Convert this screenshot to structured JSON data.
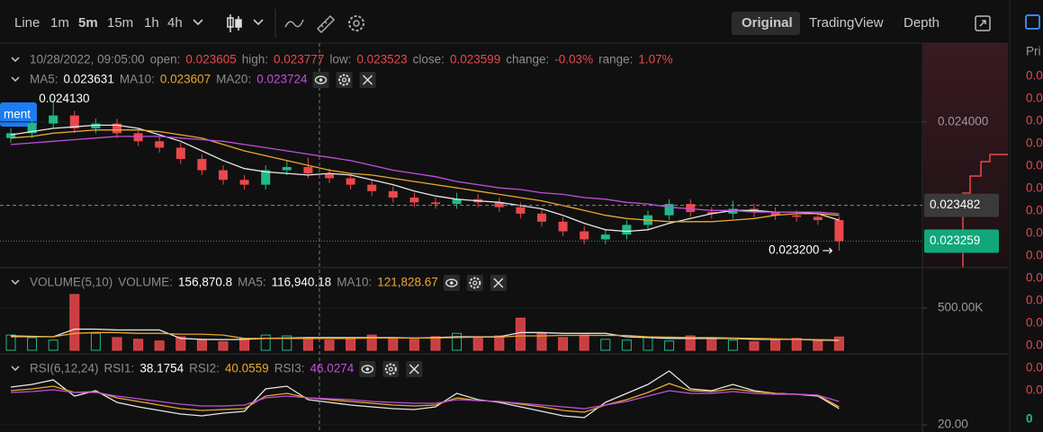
{
  "toolbar": {
    "intervals": [
      "Line",
      "1m",
      "5m",
      "15m",
      "1h",
      "4h"
    ],
    "views": [
      "Original",
      "TradingView",
      "Depth"
    ]
  },
  "tab_label": "ment",
  "info": {
    "time": "10/28/2022, 09:05:00",
    "fields": [
      {
        "label": "open:",
        "value": "0.023605"
      },
      {
        "label": "high:",
        "value": "0.023777"
      },
      {
        "label": "low:",
        "value": "0.023523"
      },
      {
        "label": "close:",
        "value": "0.023599"
      },
      {
        "label": "change:",
        "value": "-0.03%"
      },
      {
        "label": "range:",
        "value": "1.07%"
      }
    ]
  },
  "sidebar": {
    "header": "Pri",
    "prices": [
      "0.0",
      "0.0",
      "0.0",
      "0.0",
      "0.0",
      "0.0",
      "0.0",
      "0.0",
      "0.0",
      "0.0",
      "0.0",
      "0.0",
      "0.0",
      "0.0",
      "0.0"
    ],
    "last": "0"
  },
  "chart_data": [
    {
      "type": "candlestick",
      "open": [
        0.0239,
        0.02393,
        0.02399,
        0.02404,
        0.02396,
        0.02399,
        0.02393,
        0.02388,
        0.02384,
        0.02377,
        0.0237,
        0.02364,
        0.02361,
        0.0237,
        0.02372,
        0.02368,
        0.02365,
        0.02361,
        0.02357,
        0.02353,
        0.0235,
        0.02349,
        0.02352,
        0.0235,
        0.02347,
        0.02343,
        0.02338,
        0.02332,
        0.02327,
        0.0233,
        0.02336,
        0.02342,
        0.02349,
        0.02344,
        0.02343,
        0.02346,
        0.02344,
        0.02342,
        0.02341,
        0.02339
      ],
      "high": [
        0.02396,
        0.02402,
        0.02413,
        0.02407,
        0.02402,
        0.02402,
        0.02396,
        0.02391,
        0.02387,
        0.0238,
        0.02373,
        0.02367,
        0.02373,
        0.02376,
        0.023777,
        0.02371,
        0.02368,
        0.02364,
        0.0236,
        0.02356,
        0.02353,
        0.02356,
        0.02355,
        0.02353,
        0.0235,
        0.02346,
        0.02341,
        0.02335,
        0.02333,
        0.02339,
        0.02345,
        0.02352,
        0.02352,
        0.02347,
        0.02351,
        0.02349,
        0.02347,
        0.02345,
        0.02344,
        0.02341
      ],
      "low": [
        0.02387,
        0.0239,
        0.02396,
        0.02393,
        0.02393,
        0.0239,
        0.02385,
        0.02381,
        0.02374,
        0.02367,
        0.02361,
        0.02358,
        0.02358,
        0.02367,
        0.02365,
        0.02362,
        0.02358,
        0.02354,
        0.0235,
        0.02347,
        0.02346,
        0.02346,
        0.02347,
        0.02344,
        0.0234,
        0.02335,
        0.02329,
        0.02324,
        0.02324,
        0.02327,
        0.02333,
        0.02339,
        0.02341,
        0.0234,
        0.0234,
        0.02341,
        0.02339,
        0.02338,
        0.02336,
        0.0232
      ],
      "close": [
        0.02393,
        0.02399,
        0.02404,
        0.02396,
        0.02399,
        0.02393,
        0.02388,
        0.02384,
        0.02377,
        0.0237,
        0.02364,
        0.02361,
        0.0237,
        0.02372,
        0.02368,
        0.02365,
        0.02361,
        0.02357,
        0.02353,
        0.0235,
        0.02349,
        0.02352,
        0.0235,
        0.02347,
        0.02343,
        0.02338,
        0.02332,
        0.02327,
        0.0233,
        0.02336,
        0.02342,
        0.02349,
        0.02344,
        0.02343,
        0.02346,
        0.02344,
        0.02342,
        0.02341,
        0.02339,
        0.023259
      ],
      "up_color": "#22b98a",
      "down_color": "#e9484c",
      "ylim": [
        0.0231,
        0.02449
      ],
      "yticks": [
        {
          "value": 0.024,
          "label": "0.024000"
        }
      ],
      "grid": true,
      "crosshair": 0.023482,
      "last": 0.023259,
      "high_label": "0.024130",
      "low_label": "0.023200",
      "series": [
        {
          "name": "MA5:",
          "legend_value": "0.023631",
          "color": "#e6e6e6",
          "values": [
            0.02392,
            0.02394,
            0.02396,
            0.02397,
            0.02398,
            0.02398,
            0.02396,
            0.02392,
            0.02388,
            0.02382,
            0.02376,
            0.02371,
            0.02369,
            0.02368,
            0.02367,
            0.02368,
            0.02367,
            0.02364,
            0.02361,
            0.02357,
            0.02354,
            0.02352,
            0.02351,
            0.0235,
            0.02348,
            0.02346,
            0.02342,
            0.02337,
            0.02333,
            0.02332,
            0.02333,
            0.02337,
            0.0234,
            0.02343,
            0.02345,
            0.02345,
            0.02344,
            0.02344,
            0.02343,
            0.02339
          ]
        },
        {
          "name": "MA10:",
          "legend_value": "0.023607",
          "color": "#e9a82b",
          "values": [
            0.0239,
            0.02391,
            0.02393,
            0.02394,
            0.02395,
            0.02395,
            0.02395,
            0.02394,
            0.02392,
            0.0239,
            0.02386,
            0.02382,
            0.02379,
            0.02376,
            0.02373,
            0.0237,
            0.02368,
            0.02367,
            0.02365,
            0.02363,
            0.02361,
            0.02359,
            0.02357,
            0.02355,
            0.02353,
            0.02351,
            0.02348,
            0.02345,
            0.02342,
            0.0234,
            0.02339,
            0.02338,
            0.02338,
            0.02338,
            0.02339,
            0.0234,
            0.02342,
            0.02343,
            0.02343,
            0.02342
          ]
        },
        {
          "name": "MA20:",
          "legend_value": "0.023724",
          "color": "#c04fdc",
          "values": [
            0.02386,
            0.02387,
            0.02388,
            0.02389,
            0.0239,
            0.02391,
            0.02391,
            0.02391,
            0.0239,
            0.02389,
            0.02388,
            0.02386,
            0.02384,
            0.02382,
            0.0238,
            0.02378,
            0.02376,
            0.02373,
            0.0237,
            0.02368,
            0.02366,
            0.02363,
            0.02361,
            0.02359,
            0.02358,
            0.02356,
            0.02355,
            0.02353,
            0.02352,
            0.0235,
            0.02349,
            0.02347,
            0.02346,
            0.02345,
            0.02345,
            0.02344,
            0.02344,
            0.02344,
            0.02344,
            0.02343
          ]
        }
      ]
    },
    {
      "type": "volume",
      "title": "VOLUME(5,10)",
      "volume_label": "VOLUME:",
      "volume_value": "156,870.8",
      "values": [
        180000,
        150000,
        120000,
        660000,
        200000,
        150000,
        130000,
        110000,
        160000,
        120000,
        100000,
        140000,
        180000,
        170000,
        150000,
        120000,
        140000,
        180000,
        150000,
        130000,
        160000,
        200000,
        150000,
        170000,
        380000,
        200000,
        150000,
        180000,
        130000,
        120000,
        160000,
        110000,
        170000,
        150000,
        120000,
        100000,
        130000,
        140000,
        120000,
        156870.8
      ],
      "ylim": [
        0,
        957000
      ],
      "yticks": [
        {
          "value": 500000,
          "label": "500.00K"
        }
      ],
      "grid": true,
      "series": [
        {
          "name": "MA5:",
          "legend_value": "116,940.18",
          "color": "#e6e6e6",
          "values": [
            170000,
            165000,
            160000,
            250000,
            250000,
            240000,
            240000,
            240000,
            140000,
            130000,
            125000,
            130000,
            140000,
            145000,
            150000,
            150000,
            150000,
            150000,
            150000,
            145000,
            150000,
            160000,
            160000,
            160000,
            210000,
            210000,
            200000,
            200000,
            200000,
            160000,
            150000,
            140000,
            140000,
            140000,
            140000,
            130000,
            130000,
            130000,
            120000,
            116940.18
          ]
        },
        {
          "name": "MA10:",
          "legend_value": "121,828.67",
          "color": "#e9a82b",
          "values": [
            160000,
            160000,
            160000,
            200000,
            210000,
            210000,
            200000,
            200000,
            190000,
            190000,
            180000,
            140000,
            140000,
            140000,
            140000,
            140000,
            140000,
            145000,
            145000,
            145000,
            145000,
            150000,
            155000,
            155000,
            170000,
            170000,
            175000,
            175000,
            175000,
            175000,
            160000,
            155000,
            150000,
            150000,
            145000,
            140000,
            135000,
            130000,
            125000,
            121828.67
          ]
        }
      ]
    },
    {
      "type": "line",
      "title": "RSI(6,12,24)",
      "ylim": [
        12,
        97
      ],
      "yticks": [
        {
          "value": 20,
          "label": "20.00"
        }
      ],
      "grid": true,
      "series": [
        {
          "name": "RSI1:",
          "legend_value": "38.1754",
          "color": "#e6e6e6",
          "values": [
            62,
            65,
            70,
            52,
            58,
            45,
            40,
            36,
            32,
            30,
            33,
            35,
            60,
            63,
            48,
            45,
            42,
            40,
            38,
            37,
            40,
            55,
            48,
            45,
            40,
            35,
            30,
            28,
            45,
            55,
            65,
            80,
            60,
            58,
            65,
            58,
            55,
            54,
            52,
            38
          ]
        },
        {
          "name": "RSI2:",
          "legend_value": "40.0559",
          "color": "#e9a82b",
          "values": [
            58,
            60,
            63,
            56,
            57,
            50,
            46,
            42,
            38,
            36,
            37,
            38,
            52,
            55,
            50,
            48,
            46,
            44,
            42,
            41,
            42,
            50,
            47,
            46,
            43,
            40,
            36,
            34,
            42,
            48,
            56,
            66,
            58,
            57,
            60,
            57,
            55,
            54,
            53,
            40
          ]
        },
        {
          "name": "RSI3:",
          "legend_value": "46.0274",
          "color": "#c04fdc",
          "values": [
            56,
            57,
            59,
            56,
            56,
            52,
            49,
            46,
            43,
            41,
            41,
            42,
            50,
            52,
            50,
            49,
            48,
            46,
            45,
            44,
            44,
            48,
            47,
            46,
            44,
            42,
            40,
            38,
            42,
            46,
            52,
            58,
            55,
            55,
            57,
            55,
            54,
            54,
            53,
            46
          ]
        }
      ]
    }
  ]
}
